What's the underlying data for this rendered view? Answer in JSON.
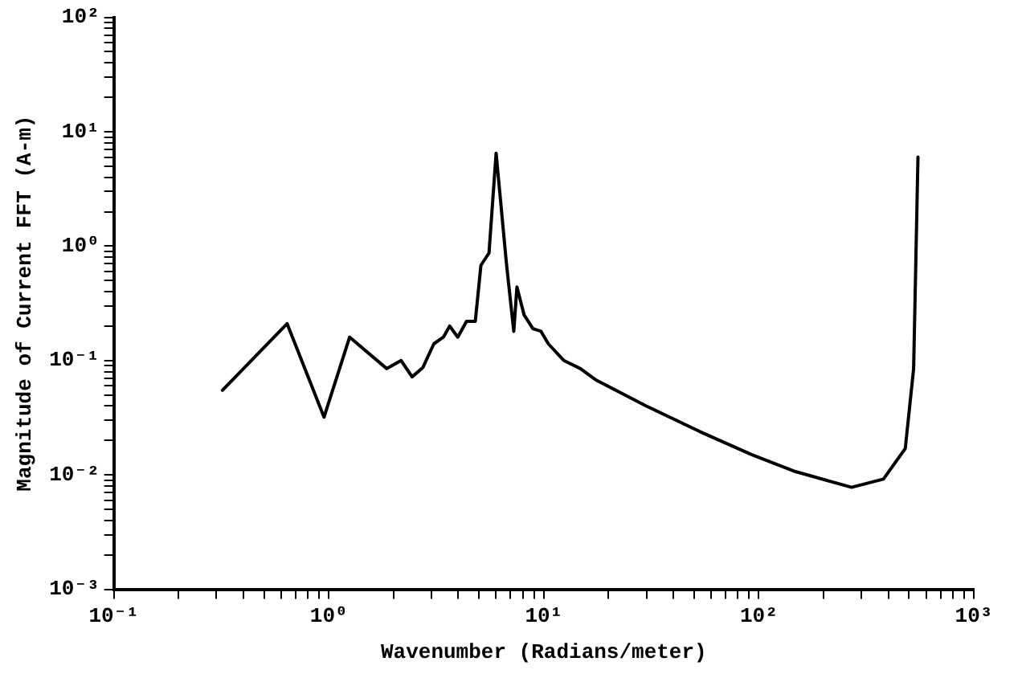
{
  "chart_data": {
    "type": "line",
    "xlabel": "Wavenumber (Radians/meter)",
    "ylabel": "Magnitude of Current FFT (A-m)",
    "log": "xy",
    "grid": false,
    "legend": false,
    "marker": "none",
    "line_style": "solid",
    "x": [
      0.32,
      0.64,
      0.95,
      1.25,
      1.86,
      2.17,
      2.44,
      2.74,
      3.08,
      3.41,
      3.65,
      3.98,
      4.37,
      4.8,
      5.1,
      5.56,
      6.0,
      6.7,
      7.25,
      7.5,
      8.1,
      8.9,
      9.7,
      10.5,
      12.4,
      14.8,
      17.4,
      30,
      53,
      93,
      148,
      270,
      380,
      480,
      525,
      550
    ],
    "series": [
      {
        "color": "#000000",
        "values": [
          0.055,
          0.21,
          0.032,
          0.16,
          0.085,
          0.1,
          0.072,
          0.087,
          0.14,
          0.16,
          0.2,
          0.16,
          0.22,
          0.22,
          0.68,
          0.87,
          6.5,
          0.71,
          0.18,
          0.44,
          0.25,
          0.19,
          0.18,
          0.14,
          0.1,
          0.085,
          0.068,
          0.04,
          0.024,
          0.015,
          0.0107,
          0.0078,
          0.0092,
          0.017,
          0.085,
          6.0
        ]
      }
    ],
    "xlim": [
      0.1,
      1000
    ],
    "ylim": [
      0.001,
      100
    ],
    "xticks": [
      {
        "value": 0.1,
        "label": "10⁻¹"
      },
      {
        "value": 0.2,
        "label": null
      },
      {
        "value": 0.3,
        "label": null
      },
      {
        "value": 0.4,
        "label": null
      },
      {
        "value": 0.5,
        "label": null
      },
      {
        "value": 0.6,
        "label": null
      },
      {
        "value": 0.7,
        "label": null
      },
      {
        "value": 0.8,
        "label": null
      },
      {
        "value": 0.9,
        "label": null
      },
      {
        "value": 1,
        "label": "10⁰"
      },
      {
        "value": 2,
        "label": null
      },
      {
        "value": 3,
        "label": null
      },
      {
        "value": 4,
        "label": null
      },
      {
        "value": 5,
        "label": null
      },
      {
        "value": 6,
        "label": null
      },
      {
        "value": 7,
        "label": null
      },
      {
        "value": 8,
        "label": null
      },
      {
        "value": 9,
        "label": null
      },
      {
        "value": 10,
        "label": "10¹"
      },
      {
        "value": 20,
        "label": null
      },
      {
        "value": 30,
        "label": null
      },
      {
        "value": 40,
        "label": null
      },
      {
        "value": 50,
        "label": null
      },
      {
        "value": 60,
        "label": null
      },
      {
        "value": 70,
        "label": null
      },
      {
        "value": 80,
        "label": null
      },
      {
        "value": 90,
        "label": null
      },
      {
        "value": 100,
        "label": "10²"
      },
      {
        "value": 200,
        "label": null
      },
      {
        "value": 300,
        "label": null
      },
      {
        "value": 400,
        "label": null
      },
      {
        "value": 500,
        "label": null
      },
      {
        "value": 600,
        "label": null
      },
      {
        "value": 700,
        "label": null
      },
      {
        "value": 800,
        "label": null
      },
      {
        "value": 900,
        "label": null
      },
      {
        "value": 1000,
        "label": "10³"
      }
    ],
    "yticks": [
      {
        "value": 0.001,
        "label": "10⁻³"
      },
      {
        "value": 0.002,
        "label": null
      },
      {
        "value": 0.003,
        "label": null
      },
      {
        "value": 0.004,
        "label": null
      },
      {
        "value": 0.005,
        "label": null
      },
      {
        "value": 0.006,
        "label": null
      },
      {
        "value": 0.007,
        "label": null
      },
      {
        "value": 0.008,
        "label": null
      },
      {
        "value": 0.009,
        "label": null
      },
      {
        "value": 0.01,
        "label": "10⁻²"
      },
      {
        "value": 0.02,
        "label": null
      },
      {
        "value": 0.03,
        "label": null
      },
      {
        "value": 0.04,
        "label": null
      },
      {
        "value": 0.05,
        "label": null
      },
      {
        "value": 0.06,
        "label": null
      },
      {
        "value": 0.07,
        "label": null
      },
      {
        "value": 0.08,
        "label": null
      },
      {
        "value": 0.09,
        "label": null
      },
      {
        "value": 0.1,
        "label": "10⁻¹"
      },
      {
        "value": 0.2,
        "label": null
      },
      {
        "value": 0.3,
        "label": null
      },
      {
        "value": 0.4,
        "label": null
      },
      {
        "value": 0.5,
        "label": null
      },
      {
        "value": 0.6,
        "label": null
      },
      {
        "value": 0.7,
        "label": null
      },
      {
        "value": 0.8,
        "label": null
      },
      {
        "value": 0.9,
        "label": null
      },
      {
        "value": 1,
        "label": "10⁰"
      },
      {
        "value": 2,
        "label": null
      },
      {
        "value": 3,
        "label": null
      },
      {
        "value": 4,
        "label": null
      },
      {
        "value": 5,
        "label": null
      },
      {
        "value": 6,
        "label": null
      },
      {
        "value": 7,
        "label": null
      },
      {
        "value": 8,
        "label": null
      },
      {
        "value": 9,
        "label": null
      },
      {
        "value": 10,
        "label": "10¹"
      },
      {
        "value": 20,
        "label": null
      },
      {
        "value": 30,
        "label": null
      },
      {
        "value": 40,
        "label": null
      },
      {
        "value": 50,
        "label": null
      },
      {
        "value": 60,
        "label": null
      },
      {
        "value": 70,
        "label": null
      },
      {
        "value": 80,
        "label": null
      },
      {
        "value": 90,
        "label": null
      },
      {
        "value": 100,
        "label": "10²"
      }
    ]
  }
}
